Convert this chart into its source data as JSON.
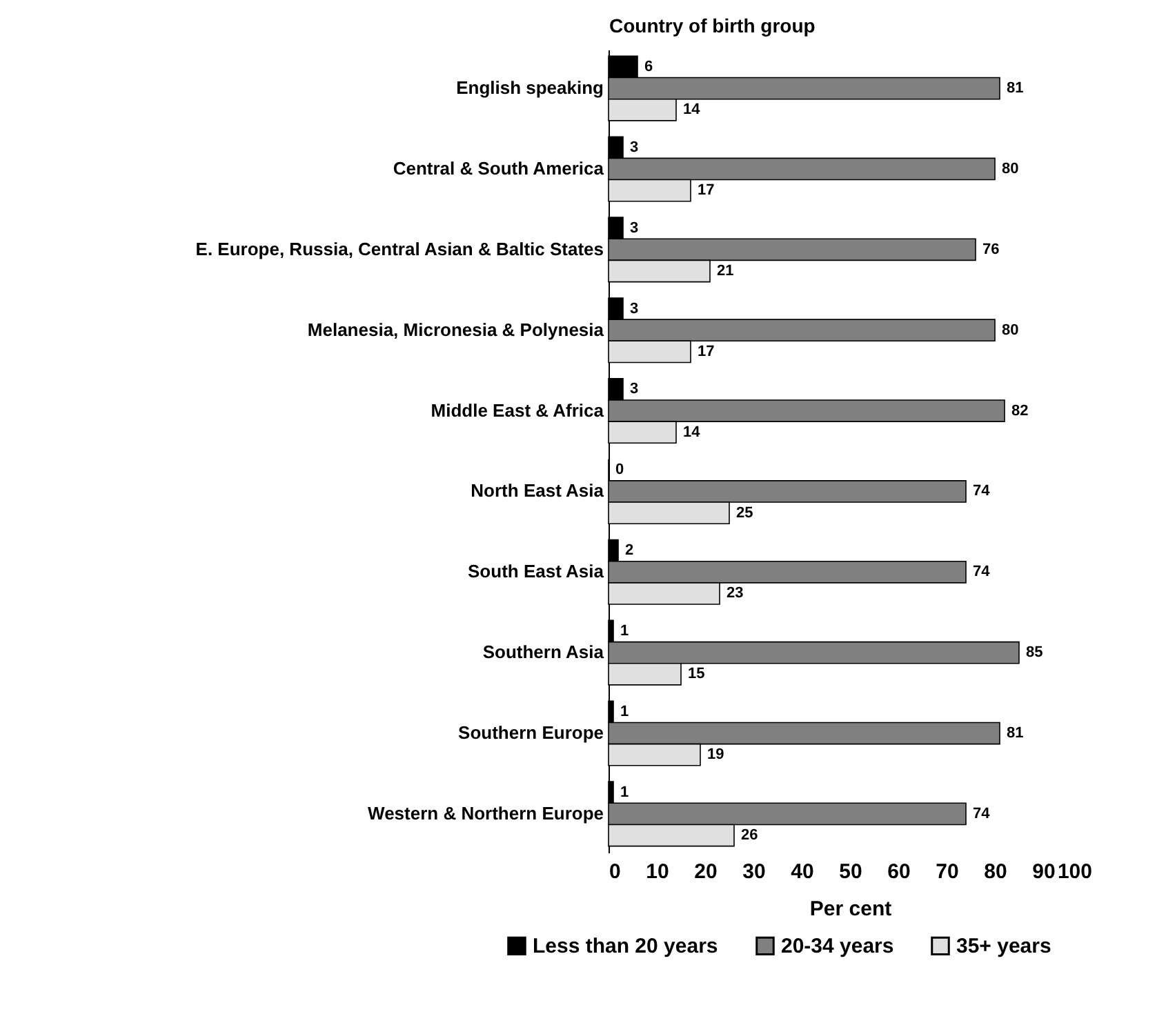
{
  "chart_data": {
    "type": "bar",
    "orientation": "horizontal",
    "ylabel": "Country of birth group",
    "xlabel": "Per cent",
    "categories": [
      "English speaking",
      "Central & South America",
      "E. Europe, Russia, Central Asian & Baltic States",
      "Melanesia, Micronesia & Polynesia",
      "Middle East & Africa",
      "North East Asia",
      "South East Asia",
      "Southern Asia",
      "Southern Europe",
      "Western & Northern Europe"
    ],
    "series": [
      {
        "name": "Less than 20 years",
        "color": "#000000",
        "values": [
          6,
          3,
          3,
          3,
          3,
          0,
          2,
          1,
          1,
          1
        ]
      },
      {
        "name": "20-34 years",
        "color": "#808080",
        "values": [
          81,
          80,
          76,
          80,
          82,
          74,
          74,
          85,
          81,
          74
        ]
      },
      {
        "name": "35+ years",
        "color": "#e0e0e0",
        "values": [
          14,
          17,
          21,
          17,
          14,
          25,
          23,
          15,
          19,
          26
        ]
      }
    ],
    "xlim": [
      0,
      100
    ],
    "xticks": [
      0,
      10,
      20,
      30,
      40,
      50,
      60,
      70,
      80,
      90,
      100
    ],
    "data_labels": true,
    "legend": "bottom",
    "grid": false
  }
}
